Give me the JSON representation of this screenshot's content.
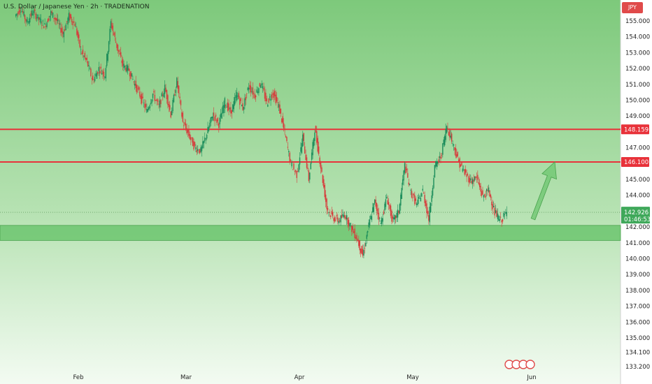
{
  "header": {
    "title": "U.S. Dollar / Japanese Yen · 2h · TRADENATION",
    "currency_badge": "JPY"
  },
  "chart_data": {
    "type": "line",
    "title": "U.S. Dollar / Japanese Yen · 2h · TRADENATION",
    "xlabel": "",
    "ylabel": "",
    "ylim": [
      133.2,
      155.5
    ],
    "grid": false,
    "y_ticks": [
      "155.000",
      "154.000",
      "153.000",
      "152.000",
      "151.000",
      "150.000",
      "149.000",
      "147.000",
      "145.000",
      "144.000",
      "142.000",
      "141.000",
      "140.000",
      "139.000",
      "138.000",
      "137.000",
      "136.000",
      "135.000",
      "134.100",
      "133.200"
    ],
    "x_ticks": [
      "Feb",
      "Mar",
      "Apr",
      "May",
      "Jun"
    ],
    "levels": [
      {
        "label": "148.159",
        "value": 148.159,
        "color": "#e8323a"
      },
      {
        "label": "146.100",
        "value": 146.1,
        "color": "#e8323a"
      }
    ],
    "support_zone": {
      "low": 141.15,
      "high": 142.1,
      "color": "#6cc56f"
    },
    "last_price": {
      "label": "142.926",
      "countdown": "01:46:53",
      "value": 142.926,
      "color": "#3fa85a"
    },
    "projection_arrow": {
      "from": 142.5,
      "to": 146.1,
      "color": "#6cc56f"
    },
    "series": [
      {
        "values": [
          155.3,
          155.8,
          154.9,
          155.6,
          155.1,
          154.7,
          155.5,
          155.0,
          154.2,
          155.3,
          154.8,
          153.1,
          152.4,
          151.2,
          152.0,
          151.6,
          154.9,
          153.4,
          152.2,
          151.9,
          151.0,
          150.2,
          149.3,
          150.4,
          149.6,
          150.8,
          149.1,
          151.2,
          148.6,
          147.8,
          147.0,
          146.8,
          147.9,
          149.1,
          148.5,
          149.9,
          149.2,
          150.4,
          149.5,
          150.9,
          150.3,
          151.1,
          149.8,
          150.5,
          149.6,
          147.9,
          146.0,
          145.3,
          147.7,
          145.0,
          148.2,
          145.8,
          143.2,
          142.6,
          142.4,
          142.8,
          142.0,
          141.3,
          140.2,
          142.1,
          143.6,
          142.2,
          143.9,
          142.3,
          143.0,
          145.9,
          144.2,
          143.4,
          144.3,
          142.5,
          145.8,
          146.4,
          148.4,
          147.3,
          146.1,
          145.4,
          144.9,
          145.1,
          143.9,
          144.3,
          142.9,
          142.4,
          142.9
        ]
      }
    ]
  }
}
